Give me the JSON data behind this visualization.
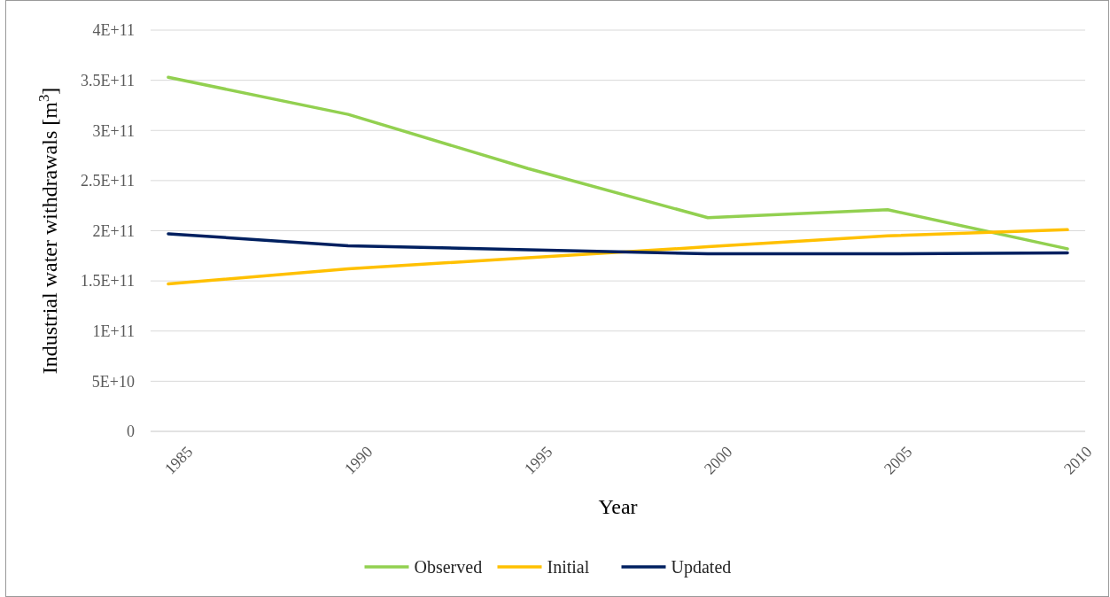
{
  "chart_data": {
    "type": "line",
    "xlabel": "Year",
    "ylabel": "Industrial water withdrawals [m$^{3}$]",
    "categories": [
      "1985",
      "1990",
      "1995",
      "2000",
      "2005",
      "2010"
    ],
    "series": [
      {
        "name": "Observed",
        "color": "#92d050",
        "values": [
          353000000000,
          316000000000,
          262000000000,
          213000000000,
          221000000000,
          182000000000
        ]
      },
      {
        "name": "Initial",
        "color": "#ffc000",
        "values": [
          147000000000,
          162000000000,
          173000000000,
          184000000000,
          195000000000,
          201000000000
        ]
      },
      {
        "name": "Updated",
        "color": "#002060",
        "values": [
          197000000000,
          185000000000,
          181000000000,
          177000000000,
          177000000000,
          178000000000
        ]
      }
    ],
    "ylim": [
      0,
      400000000000
    ],
    "yticks": [
      0,
      {
        "value": 50000000000,
        "label": "5E+10"
      },
      {
        "value": 100000000000,
        "label": "1E+11"
      },
      {
        "value": 150000000000,
        "label": "1.5E+11"
      },
      {
        "value": 200000000000,
        "label": "2E+11"
      },
      {
        "value": 250000000000,
        "label": "2.5E+11"
      },
      {
        "value": 300000000000,
        "label": "3E+11"
      },
      {
        "value": 350000000000,
        "label": "3.5E+11"
      },
      {
        "value": 400000000000,
        "label": "4E+11"
      }
    ],
    "grid": "y",
    "legend": "bottom",
    "marker": "none",
    "line_style": "solid"
  }
}
